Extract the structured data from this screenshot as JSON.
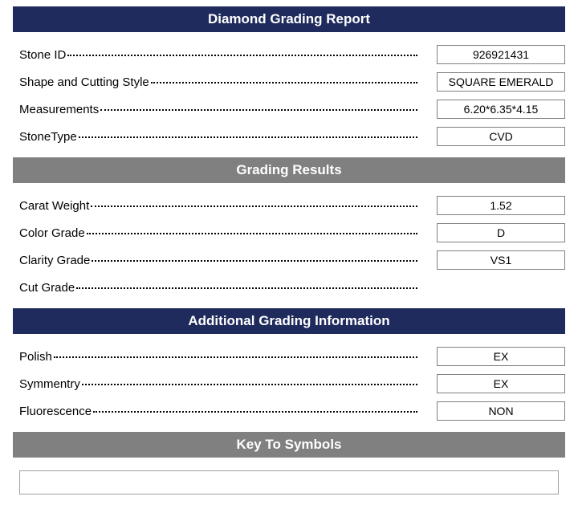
{
  "colors": {
    "navy": "#1e2b5c",
    "gray": "#808080",
    "border": "#808080",
    "text": "#000000",
    "white": "#ffffff"
  },
  "sections": {
    "main": {
      "title": "Diamond Grading Report",
      "header_style": "navy",
      "rows": [
        {
          "label": "Stone ID",
          "value": "926921431"
        },
        {
          "label": "Shape and Cutting Style",
          "value": "SQUARE EMERALD"
        },
        {
          "label": "Measurements",
          "value": "6.20*6.35*4.15"
        },
        {
          "label": "StoneType",
          "value": "CVD"
        }
      ]
    },
    "grading": {
      "title": "Grading Results",
      "header_style": "gray",
      "rows": [
        {
          "label": "Carat Weight",
          "value": "1.52"
        },
        {
          "label": "Color Grade",
          "value": "D"
        },
        {
          "label": "Clarity Grade",
          "value": "VS1"
        },
        {
          "label": "Cut Grade",
          "value": null
        }
      ]
    },
    "additional": {
      "title": "Additional Grading Information",
      "header_style": "navy",
      "rows": [
        {
          "label": "Polish",
          "value": "EX"
        },
        {
          "label": "Symmentry",
          "value": "EX"
        },
        {
          "label": "Fluorescence",
          "value": "NON"
        }
      ]
    },
    "symbols": {
      "title": "Key To Symbols",
      "header_style": "gray",
      "content": ""
    }
  }
}
